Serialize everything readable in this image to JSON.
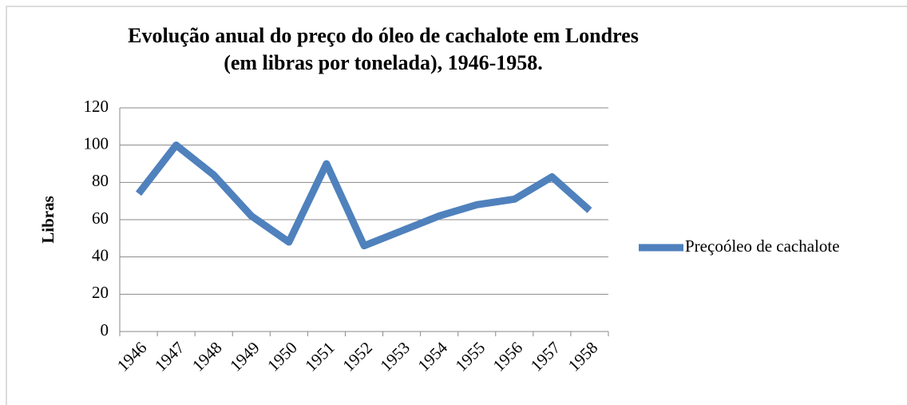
{
  "chart_data": {
    "type": "line",
    "title": "Evolução anual do preço do óleo de cachalote em Londres (em libras por tonelada), 1946-1958.",
    "y_label": "Libras",
    "categories": [
      "1946",
      "1947",
      "1948",
      "1949",
      "1950",
      "1951",
      "1952",
      "1953",
      "1954",
      "1955",
      "1956",
      "1957",
      "1958"
    ],
    "series": [
      {
        "name": "Preçoóleo de cachalote",
        "color": "#4f81bd",
        "values": [
          74,
          100,
          84,
          62,
          48,
          90,
          46,
          54,
          62,
          68,
          71,
          83,
          65
        ]
      }
    ],
    "ylim": [
      0,
      120
    ],
    "yticks": [
      0,
      20,
      40,
      60,
      80,
      100,
      120
    ],
    "grid": true,
    "legend": "right"
  }
}
